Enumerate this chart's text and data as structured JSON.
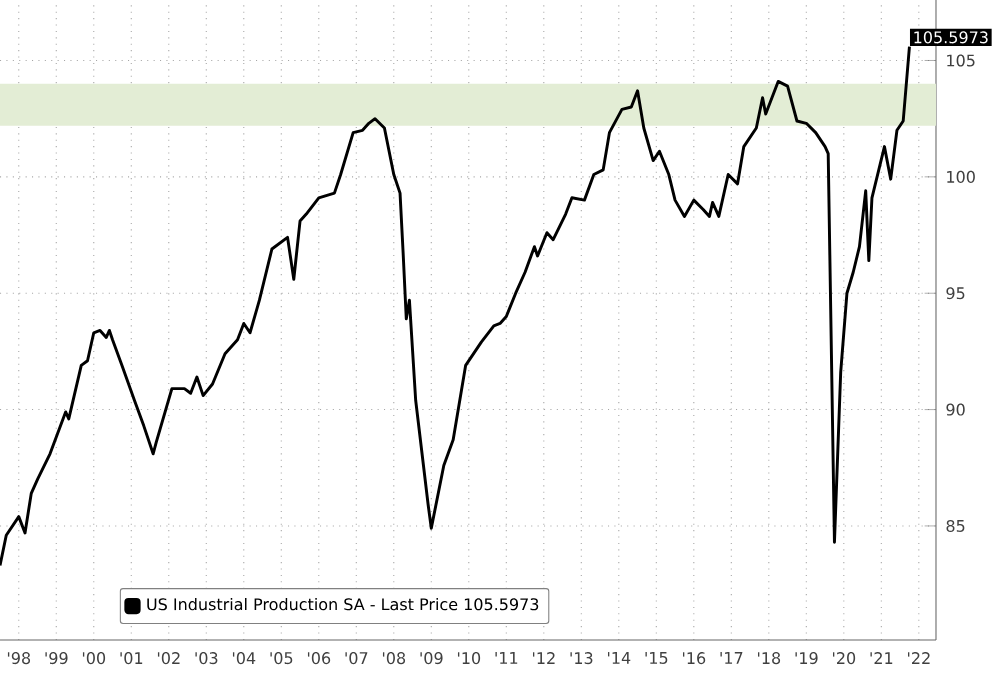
{
  "chart_data": {
    "type": "line",
    "x": [
      "1998-01",
      "1998-03",
      "1998-07",
      "1998-09",
      "1998-11",
      "1999-01",
      "1999-05",
      "1999-10",
      "1999-11",
      "2000-03",
      "2000-05",
      "2000-07",
      "2000-09",
      "2000-11",
      "2000-12",
      "2001-01",
      "2001-04",
      "2001-08",
      "2001-11",
      "2002-02",
      "2002-03",
      "2002-08",
      "2002-12",
      "2003-02",
      "2003-04",
      "2003-06",
      "2003-09",
      "2004-01",
      "2004-05",
      "2004-07",
      "2004-09",
      "2004-12",
      "2005-04",
      "2005-09",
      "2005-11",
      "2006-01",
      "2006-03",
      "2006-07",
      "2006-12",
      "2007-02",
      "2007-06",
      "2007-09",
      "2007-11",
      "2008-01",
      "2008-04",
      "2008-07",
      "2008-09",
      "2008-10",
      "2008-11",
      "2008-12",
      "2009-02",
      "2009-06",
      "2009-07",
      "2009-11",
      "2010-02",
      "2010-06",
      "2010-11",
      "2011-03",
      "2011-05",
      "2011-07",
      "2011-10",
      "2012-01",
      "2012-04",
      "2012-05",
      "2012-08",
      "2012-10",
      "2013-02",
      "2013-04",
      "2013-08",
      "2013-11",
      "2014-02",
      "2014-04",
      "2014-08",
      "2014-11",
      "2015-01",
      "2015-03",
      "2015-06",
      "2015-08",
      "2015-11",
      "2016-01",
      "2016-04",
      "2016-07",
      "2016-10",
      "2016-12",
      "2017-01",
      "2017-03",
      "2017-06",
      "2017-09",
      "2017-11",
      "2018-03",
      "2018-05",
      "2018-06",
      "2018-10",
      "2019-01",
      "2019-04",
      "2019-07",
      "2019-10",
      "2020-01",
      "2020-02",
      "2020-04",
      "2020-06",
      "2020-08",
      "2020-10",
      "2020-12",
      "2021-02",
      "2021-03",
      "2021-04",
      "2021-08",
      "2021-10",
      "2021-12",
      "2022-02",
      "2022-04"
    ],
    "series": [
      {
        "name": "US Industrial Production SA - Last Price 105.5973",
        "color": "#000000",
        "values": [
          83.3,
          84.6,
          85.4,
          84.7,
          86.4,
          87.0,
          88.1,
          89.9,
          89.6,
          91.9,
          92.1,
          93.3,
          93.4,
          93.1,
          93.4,
          93.0,
          91.9,
          90.4,
          89.3,
          88.1,
          88.6,
          90.9,
          90.9,
          90.7,
          91.4,
          90.6,
          91.1,
          92.4,
          93.0,
          93.7,
          93.3,
          94.7,
          96.9,
          97.4,
          95.6,
          98.1,
          98.4,
          99.1,
          99.3,
          100.1,
          101.9,
          102.0,
          102.3,
          102.5,
          102.1,
          100.1,
          99.3,
          96.7,
          93.9,
          94.7,
          90.4,
          85.9,
          84.9,
          87.6,
          88.7,
          91.9,
          92.9,
          93.6,
          93.7,
          94.0,
          95.0,
          95.9,
          97.0,
          96.6,
          97.6,
          97.3,
          98.4,
          99.1,
          99.0,
          100.1,
          100.3,
          101.9,
          102.9,
          103.0,
          103.7,
          102.1,
          100.7,
          101.1,
          100.1,
          99.0,
          98.3,
          99.0,
          98.6,
          98.3,
          98.9,
          98.3,
          100.1,
          99.7,
          101.3,
          102.1,
          103.4,
          102.7,
          104.1,
          103.9,
          102.4,
          102.3,
          101.9,
          101.3,
          101.0,
          84.3,
          91.6,
          95.0,
          95.9,
          97.0,
          99.4,
          96.4,
          99.1,
          101.3,
          99.9,
          102.0,
          102.4,
          105.5973
        ]
      }
    ],
    "xlim": [
      "1998-01-01",
      "2022-12-16"
    ],
    "xticks": [
      {
        "value": "1998-07-01",
        "label": "'98"
      },
      {
        "value": "1999-07-01",
        "label": "'99"
      },
      {
        "value": "2000-07-01",
        "label": "'00"
      },
      {
        "value": "2001-07-01",
        "label": "'01"
      },
      {
        "value": "2002-07-01",
        "label": "'02"
      },
      {
        "value": "2003-07-01",
        "label": "'03"
      },
      {
        "value": "2004-07-01",
        "label": "'04"
      },
      {
        "value": "2005-07-01",
        "label": "'05"
      },
      {
        "value": "2006-07-01",
        "label": "'06"
      },
      {
        "value": "2007-07-01",
        "label": "'07"
      },
      {
        "value": "2008-07-01",
        "label": "'08"
      },
      {
        "value": "2009-07-01",
        "label": "'09"
      },
      {
        "value": "2010-07-01",
        "label": "'10"
      },
      {
        "value": "2011-07-01",
        "label": "'11"
      },
      {
        "value": "2012-07-01",
        "label": "'12"
      },
      {
        "value": "2013-07-01",
        "label": "'13"
      },
      {
        "value": "2014-07-01",
        "label": "'14"
      },
      {
        "value": "2015-07-01",
        "label": "'15"
      },
      {
        "value": "2016-07-01",
        "label": "'16"
      },
      {
        "value": "2017-07-01",
        "label": "'17"
      },
      {
        "value": "2018-07-01",
        "label": "'18"
      },
      {
        "value": "2019-07-01",
        "label": "'19"
      },
      {
        "value": "2020-07-01",
        "label": "'20"
      },
      {
        "value": "2021-07-01",
        "label": "'21"
      },
      {
        "value": "2022-07-01",
        "label": "'22"
      }
    ],
    "ylim": [
      80.1,
      107.6
    ],
    "yticks": [
      85,
      90,
      95,
      100,
      105
    ],
    "bands": [
      {
        "axis": "y",
        "from": 102.2,
        "to": 104.0,
        "color": "#e3edd5"
      }
    ],
    "annotations": [
      {
        "text": "105.5973",
        "x": "2022-04",
        "y": 105.5973
      }
    ],
    "grid": true,
    "legend": "bottom left"
  }
}
